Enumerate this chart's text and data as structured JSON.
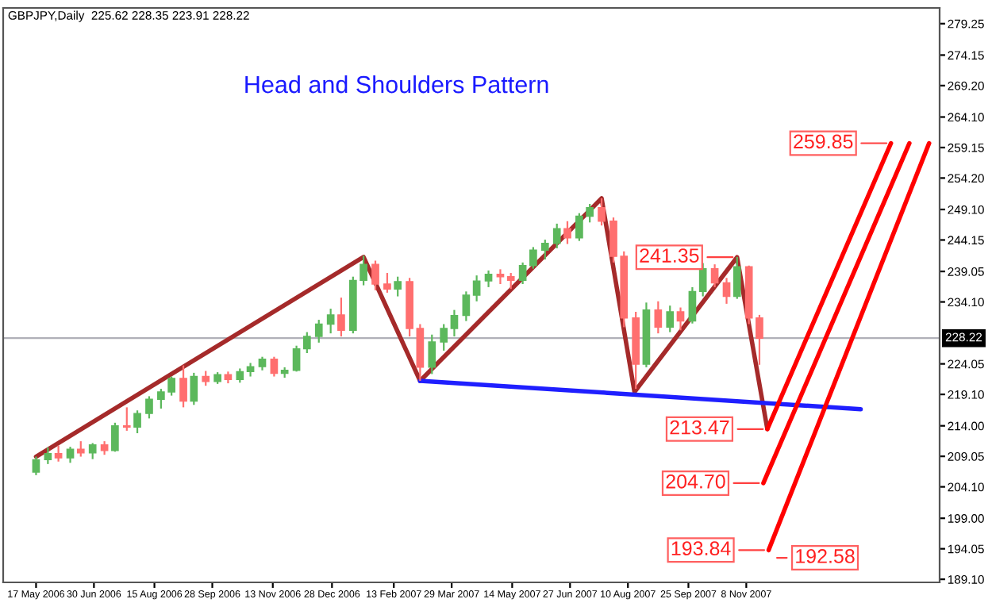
{
  "chart_data": {
    "type": "candlestick",
    "title": "Head and Shoulders Pattern",
    "annotations": [
      "GBPJPY,Daily  225.62 228.35 223.91 228.22",
      {
        "text": "259.85",
        "x": "2008-02-26",
        "y": 259.85
      },
      {
        "text": "241.35",
        "x": "2007-11-01",
        "y": 241.35
      },
      {
        "text": "213.47",
        "x": "2007-11-24",
        "y": 213.47
      },
      {
        "text": "204.70",
        "x": "2007-11-21",
        "y": 204.7
      },
      {
        "text": "193.84",
        "x": "2007-11-25",
        "y": 193.84
      },
      {
        "text": "192.58",
        "x": "2007-11-28",
        "y": 192.58
      }
    ],
    "x": [
      "2006-05-17",
      "2006-05-26",
      "2006-06-03",
      "2006-06-12",
      "2006-06-20",
      "2006-06-29",
      "2006-07-08",
      "2006-07-16",
      "2006-07-25",
      "2006-08-02",
      "2006-08-11",
      "2006-08-20",
      "2006-08-28",
      "2006-09-06",
      "2006-09-14",
      "2006-09-23",
      "2006-10-02",
      "2006-10-10",
      "2006-10-19",
      "2006-10-27",
      "2006-11-05",
      "2006-11-14",
      "2006-11-22",
      "2006-12-01",
      "2006-12-09",
      "2006-12-18",
      "2006-12-27",
      "2007-01-04",
      "2007-01-13",
      "2007-01-21",
      "2007-01-30",
      "2007-02-08",
      "2007-02-16",
      "2007-02-25",
      "2007-03-05",
      "2007-03-14",
      "2007-03-23",
      "2007-03-31",
      "2007-04-09",
      "2007-04-17",
      "2007-04-26",
      "2007-05-05",
      "2007-05-13",
      "2007-05-22",
      "2007-05-30",
      "2007-06-08",
      "2007-06-17",
      "2007-06-25",
      "2007-07-04",
      "2007-07-12",
      "2007-07-21",
      "2007-07-30",
      "2007-08-07",
      "2007-08-16",
      "2007-08-24",
      "2007-09-02",
      "2007-09-11",
      "2007-09-19",
      "2007-09-28",
      "2007-10-06",
      "2007-10-15",
      "2007-10-24",
      "2007-11-01",
      "2007-11-10",
      "2007-11-18"
    ],
    "ohlc": [
      [
        206.5,
        209.0,
        206.0,
        208.5
      ],
      [
        208.5,
        210.5,
        207.8,
        209.5
      ],
      [
        209.5,
        210.8,
        208.2,
        208.8
      ],
      [
        208.8,
        210.6,
        208.0,
        210.2
      ],
      [
        210.2,
        211.5,
        209.0,
        209.6
      ],
      [
        209.6,
        211.2,
        208.6,
        210.9
      ],
      [
        210.9,
        211.5,
        209.3,
        210.0
      ],
      [
        210.0,
        214.5,
        209.8,
        214.0
      ],
      [
        214.0,
        217.0,
        213.2,
        213.8
      ],
      [
        213.8,
        216.5,
        212.8,
        216.0
      ],
      [
        216.0,
        218.8,
        215.2,
        218.3
      ],
      [
        218.3,
        220.0,
        216.8,
        219.5
      ],
      [
        219.5,
        222.0,
        218.9,
        221.7
      ],
      [
        221.7,
        223.8,
        217.0,
        218.0
      ],
      [
        218.0,
        222.6,
        217.4,
        222.0
      ],
      [
        222.0,
        222.9,
        220.5,
        221.2
      ],
      [
        221.2,
        222.7,
        220.8,
        222.3
      ],
      [
        222.3,
        222.8,
        220.9,
        221.5
      ],
      [
        221.5,
        223.3,
        221.0,
        222.8
      ],
      [
        222.8,
        224.2,
        222.0,
        223.6
      ],
      [
        223.6,
        225.2,
        223.0,
        224.8
      ],
      [
        224.8,
        225.2,
        222.0,
        222.5
      ],
      [
        222.5,
        223.5,
        221.8,
        223.0
      ],
      [
        223.0,
        227.0,
        222.8,
        226.5
      ],
      [
        226.5,
        229.2,
        225.8,
        228.5
      ],
      [
        228.5,
        231.2,
        227.5,
        230.5
      ],
      [
        230.5,
        233.0,
        229.0,
        232.0
      ],
      [
        232.0,
        234.8,
        228.5,
        229.5
      ],
      [
        229.5,
        238.2,
        229.0,
        237.6
      ],
      [
        237.6,
        241.6,
        236.8,
        240.2
      ],
      [
        240.2,
        240.8,
        236.0,
        237.0
      ],
      [
        237.0,
        238.8,
        235.6,
        236.2
      ],
      [
        236.2,
        238.2,
        235.0,
        237.4
      ],
      [
        237.4,
        238.0,
        228.5,
        229.8
      ],
      [
        229.8,
        230.5,
        221.3,
        223.5
      ],
      [
        223.5,
        228.8,
        222.4,
        227.6
      ],
      [
        227.6,
        230.5,
        226.2,
        229.8
      ],
      [
        229.8,
        232.8,
        228.5,
        231.9
      ],
      [
        231.9,
        235.8,
        231.0,
        235.2
      ],
      [
        235.2,
        238.4,
        234.2,
        237.5
      ],
      [
        237.5,
        239.2,
        236.5,
        238.6
      ],
      [
        238.6,
        239.4,
        237.0,
        238.2
      ],
      [
        238.2,
        238.8,
        236.2,
        237.6
      ],
      [
        237.6,
        240.5,
        237.0,
        240.0
      ],
      [
        240.0,
        243.0,
        239.5,
        242.5
      ],
      [
        242.5,
        244.2,
        241.0,
        243.6
      ],
      [
        243.6,
        246.8,
        242.8,
        246.0
      ],
      [
        246.0,
        247.2,
        243.5,
        244.5
      ],
      [
        244.5,
        248.5,
        244.0,
        248.0
      ],
      [
        248.0,
        250.0,
        247.0,
        249.4
      ],
      [
        249.4,
        250.9,
        246.5,
        247.2
      ],
      [
        247.2,
        247.8,
        240.5,
        241.5
      ],
      [
        241.5,
        242.3,
        230.0,
        231.5
      ],
      [
        231.5,
        232.5,
        220.0,
        224.0
      ],
      [
        224.0,
        234.0,
        223.5,
        232.8
      ],
      [
        232.8,
        234.2,
        229.0,
        230.0
      ],
      [
        230.0,
        233.5,
        229.2,
        232.5
      ],
      [
        232.5,
        233.2,
        229.5,
        231.0
      ],
      [
        231.0,
        236.5,
        230.6,
        235.8
      ],
      [
        235.8,
        240.4,
        235.0,
        239.5
      ],
      [
        239.5,
        240.2,
        236.5,
        237.2
      ],
      [
        237.2,
        238.0,
        233.8,
        235.0
      ],
      [
        235.0,
        241.4,
        234.6,
        239.8
      ],
      [
        239.8,
        240.0,
        230.5,
        231.5
      ],
      [
        231.5,
        232.0,
        223.9,
        228.2
      ]
    ],
    "colors": [
      "#5cb85c",
      "#5cb85c",
      "#ff6f6f",
      "#5cb85c",
      "#ff6f6f",
      "#5cb85c",
      "#ff6f6f",
      "#5cb85c",
      "#ff6f6f",
      "#5cb85c",
      "#5cb85c",
      "#5cb85c",
      "#5cb85c",
      "#ff6f6f",
      "#5cb85c",
      "#ff6f6f",
      "#5cb85c",
      "#ff6f6f",
      "#5cb85c",
      "#5cb85c",
      "#5cb85c",
      "#ff6f6f",
      "#5cb85c",
      "#5cb85c",
      "#5cb85c",
      "#5cb85c",
      "#5cb85c",
      "#ff6f6f",
      "#5cb85c",
      "#5cb85c",
      "#ff6f6f",
      "#ff6f6f",
      "#5cb85c",
      "#ff6f6f",
      "#ff6f6f",
      "#5cb85c",
      "#5cb85c",
      "#5cb85c",
      "#5cb85c",
      "#5cb85c",
      "#5cb85c",
      "#ff6f6f",
      "#ff6f6f",
      "#5cb85c",
      "#5cb85c",
      "#5cb85c",
      "#5cb85c",
      "#ff6f6f",
      "#5cb85c",
      "#5cb85c",
      "#ff6f6f",
      "#ff6f6f",
      "#ff6f6f",
      "#ff6f6f",
      "#5cb85c",
      "#ff6f6f",
      "#5cb85c",
      "#ff6f6f",
      "#5cb85c",
      "#5cb85c",
      "#ff6f6f",
      "#ff6f6f",
      "#5cb85c",
      "#ff6f6f",
      "#ff6f6f"
    ],
    "series": [
      {
        "type": "line",
        "color": "#a52a2a",
        "x": [
          "2006-05-17",
          "2007-01-21",
          "2007-03-05",
          "2007-07-21",
          "2007-08-15",
          "2007-11-01",
          "2007-11-24"
        ],
        "values": [
          209.0,
          241.4,
          221.3,
          250.9,
          219.5,
          241.35,
          213.47
        ]
      },
      {
        "type": "line",
        "color": "#1f1fff",
        "x": [
          "2007-03-05",
          "2008-02-03"
        ],
        "values": [
          221.3,
          216.7
        ]
      },
      {
        "type": "line",
        "color": "#ff0000",
        "x": [
          "2007-11-24",
          "2008-02-26"
        ],
        "values": [
          213.47,
          259.85
        ]
      },
      {
        "type": "line",
        "color": "#ff0000",
        "x": [
          "2007-11-21",
          "2008-03-11"
        ],
        "values": [
          204.7,
          259.85
        ]
      },
      {
        "type": "line",
        "color": "#ff0000",
        "x": [
          "2007-11-25",
          "2008-03-26"
        ],
        "values": [
          193.84,
          259.85
        ]
      }
    ],
    "ref_lines": [
      {
        "axis": "y",
        "value": 228.22,
        "label": "228.22",
        "color": "#b0b0b8"
      }
    ],
    "xlim": [
      "2006-04-22",
      "2008-04-03"
    ],
    "xticks": [
      {
        "value": "2006-05-17",
        "label": "17 May 2006"
      },
      {
        "value": "2006-06-30",
        "label": "30 Jun 2006"
      },
      {
        "value": "2006-08-15",
        "label": "15 Aug 2006"
      },
      {
        "value": "2006-09-28",
        "label": "28 Sep 2006"
      },
      {
        "value": "2006-11-13",
        "label": "13 Nov 2006"
      },
      {
        "value": "2006-12-28",
        "label": "28 Dec 2006"
      },
      {
        "value": "2007-02-13",
        "label": "13 Feb 2007"
      },
      {
        "value": "2007-03-29",
        "label": "29 Mar 2007"
      },
      {
        "value": "2007-05-14",
        "label": "14 May 2007"
      },
      {
        "value": "2007-06-27",
        "label": "27 Jun 2007"
      },
      {
        "value": "2007-08-10",
        "label": "10 Aug 2007"
      },
      {
        "value": "2007-09-25",
        "label": "25 Sep 2007"
      },
      {
        "value": "2007-11-08",
        "label": "8 Nov 2007"
      }
    ],
    "ylim": [
      188.6,
      281.8
    ],
    "yticks": [
      279.25,
      274.15,
      {
        "value": 269.2,
        "label": "269.20"
      },
      {
        "value": 264.1,
        "label": "264.10"
      },
      259.15,
      {
        "value": 254.2,
        "label": "254.20"
      },
      {
        "value": 249.1,
        "label": "249.10"
      },
      244.15,
      239.05,
      {
        "value": 234.1,
        "label": "234.10"
      },
      224.05,
      {
        "value": 219.1,
        "label": "219.10"
      },
      {
        "value": 214.0,
        "label": "214.00"
      },
      209.05,
      {
        "value": 204.1,
        "label": "204.10"
      },
      {
        "value": 199.0,
        "label": "199.00"
      },
      194.05,
      {
        "value": 189.1,
        "label": "189.10"
      }
    ],
    "grid": false,
    "legend": false
  }
}
